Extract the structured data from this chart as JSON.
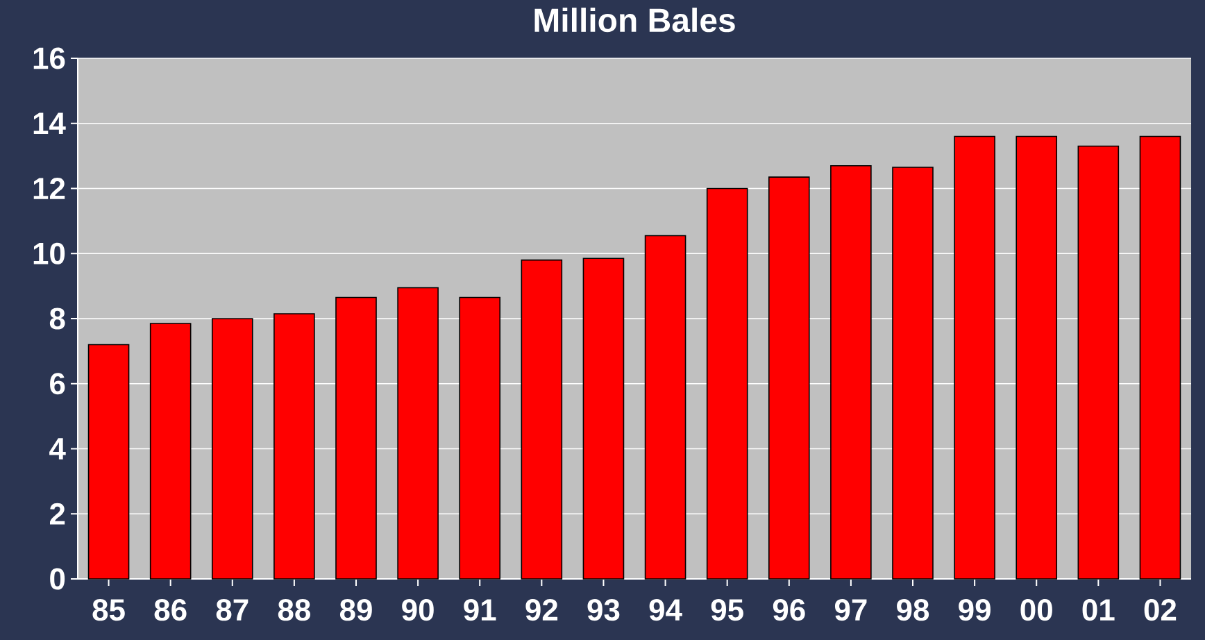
{
  "chart_data": {
    "type": "bar",
    "title": "Million Bales",
    "categories": [
      "85",
      "86",
      "87",
      "88",
      "89",
      "90",
      "91",
      "92",
      "93",
      "94",
      "95",
      "96",
      "97",
      "98",
      "99",
      "00",
      "01",
      "02"
    ],
    "values": [
      7.2,
      7.85,
      8.0,
      8.15,
      8.65,
      8.95,
      8.65,
      9.8,
      9.85,
      10.55,
      12.0,
      12.35,
      12.7,
      12.65,
      13.6,
      13.6,
      13.3,
      13.6
    ],
    "color": "#ff0000",
    "ylim": [
      0,
      16
    ],
    "yticks": [
      0,
      2,
      4,
      6,
      8,
      10,
      12,
      14,
      16
    ],
    "grid": "y"
  }
}
